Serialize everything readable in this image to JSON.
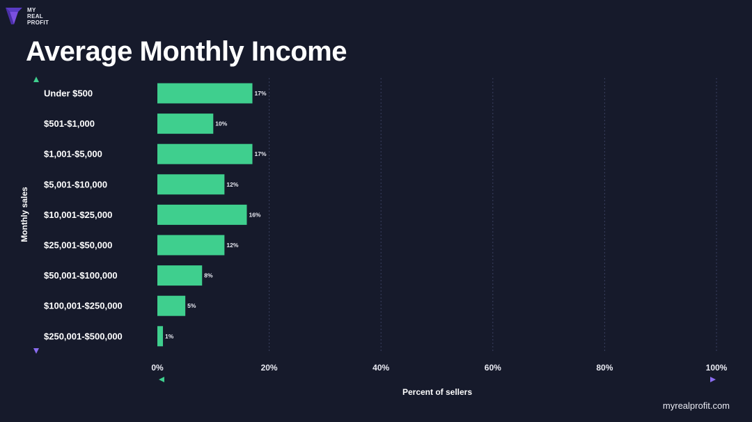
{
  "brand": {
    "logo_lines": [
      "MY",
      "REAL",
      "PROFIT"
    ],
    "logo_color": "#7b4fe0"
  },
  "title": "Average Monthly Income",
  "footer": "myrealprofit.com",
  "colors": {
    "background": "#161a2b",
    "bar": "#3fcf8e",
    "gradient_start": "#3fcf8e",
    "gradient_mid": "#e0a23a",
    "gradient_end": "#8a6cf0",
    "grid": "#3a4060"
  },
  "chart_data": {
    "type": "bar",
    "orientation": "horizontal",
    "title": "Average Monthly Income",
    "xlabel": "Percent of sellers",
    "ylabel": "Monthly sales",
    "xlim": [
      0,
      100
    ],
    "x_ticks": [
      "0%",
      "20%",
      "40%",
      "60%",
      "80%",
      "100%"
    ],
    "x_tick_values": [
      0,
      20,
      40,
      60,
      80,
      100
    ],
    "grid": true,
    "categories": [
      "Under $500",
      "$501-$1,000",
      "$1,001-$5,000",
      "$5,001-$10,000",
      "$10,001-$25,000",
      "$25,001-$50,000",
      "$50,001-$100,000",
      "$100,001-$250,000",
      "$250,001-$500,000"
    ],
    "values": [
      17,
      10,
      17,
      12,
      16,
      12,
      8,
      5,
      1
    ],
    "data_labels": [
      "17%",
      "10%",
      "17%",
      "12%",
      "16%",
      "12%",
      "8%",
      "5%",
      "1%"
    ]
  }
}
